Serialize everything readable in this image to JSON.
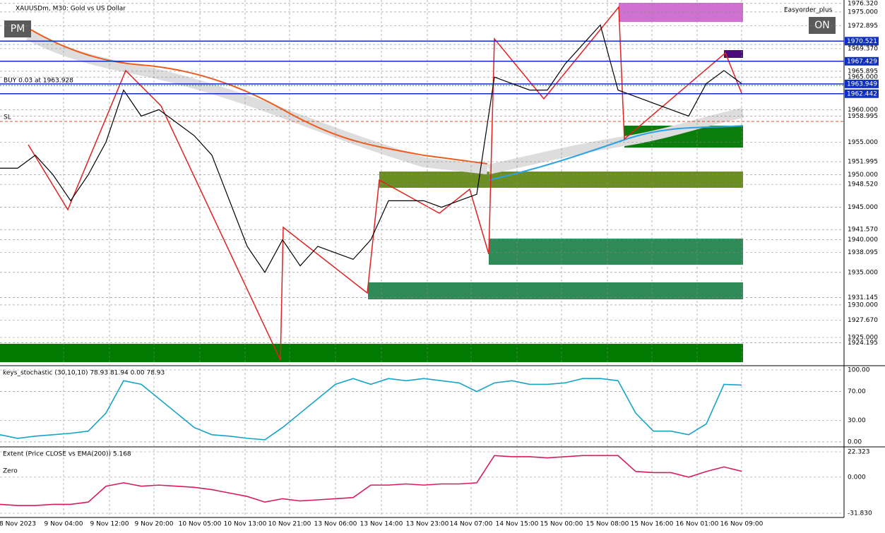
{
  "header": {
    "title": "XAUUSDm, M30:  Gold vs US Dollar",
    "left_button": "PM",
    "right_button": "ON",
    "expert": "Easyorder_plus",
    "order_label": "BUY 0.03 at 1963.928",
    "sl_label": "SL"
  },
  "time_axis": [
    "8 Nov 2023",
    "9 Nov 04:00",
    "9 Nov 12:00",
    "9 Nov 20:00",
    "10 Nov 05:00",
    "10 Nov 13:00",
    "10 Nov 21:00",
    "13 Nov 06:00",
    "13 Nov 14:00",
    "13 Nov 23:00",
    "14 Nov 07:00",
    "14 Nov 15:00",
    "15 Nov 00:00",
    "15 Nov 08:00",
    "15 Nov 16:00",
    "16 Nov 01:00",
    "16 Nov 09:00"
  ],
  "chart_data": [
    {
      "type": "line",
      "name": "price",
      "color": "#000000",
      "values": [
        1951,
        1951,
        1953,
        1950,
        1946,
        1950,
        1955,
        1963,
        1959,
        1960,
        1958,
        1956,
        1953,
        1946,
        1939,
        1935,
        1940,
        1936,
        1939,
        1938,
        1937,
        1940,
        1946,
        1946,
        1946,
        1945,
        1946,
        1947,
        1965,
        1964,
        1963,
        1963,
        1967,
        1970,
        1973,
        1963,
        1962,
        1961,
        1960,
        1959,
        1964,
        1966,
        1964
      ],
      "ylim": [
        1920.77,
        1976.84
      ],
      "yticks": [
        {
          "value": 1976.32,
          "label": "1976.320"
        },
        {
          "value": 1975,
          "label": "1975.000"
        },
        {
          "value": 1972.895,
          "label": "1972.895"
        },
        {
          "value": 1970,
          "label": "1970.000"
        },
        {
          "value": 1969.37,
          "label": "1969.370"
        },
        {
          "value": 1965.895,
          "label": "1965.895"
        },
        {
          "value": 1965,
          "label": "1965.000"
        },
        {
          "value": 1960,
          "label": "1960.000"
        },
        {
          "value": 1958.995,
          "label": "1958.995"
        },
        {
          "value": 1955,
          "label": "1955.000"
        },
        {
          "value": 1951.995,
          "label": "1951.995"
        },
        {
          "value": 1950,
          "label": "1950.000"
        },
        {
          "value": 1948.52,
          "label": "1948.520"
        },
        {
          "value": 1945,
          "label": "1945.000"
        },
        {
          "value": 1941.57,
          "label": "1941.570"
        },
        {
          "value": 1940,
          "label": "1940.000"
        },
        {
          "value": 1938.095,
          "label": "1938.095"
        },
        {
          "value": 1935,
          "label": "1935.000"
        },
        {
          "value": 1931.145,
          "label": "1931.145"
        },
        {
          "value": 1930,
          "label": "1930.000"
        },
        {
          "value": 1927.67,
          "label": "1927.670"
        },
        {
          "value": 1925,
          "label": "1925.000"
        },
        {
          "value": 1924.195,
          "label": "1924.195"
        }
      ],
      "levels": [
        {
          "value": 1970.521,
          "label": "1970.521"
        },
        {
          "value": 1967.429,
          "label": "1967.429"
        },
        {
          "value": 1963.949,
          "label": "1963.949"
        },
        {
          "value": 1962.442,
          "label": "1962.442"
        }
      ]
    },
    {
      "type": "line",
      "title": "keys_stochastic (30,10,10) 78.93 81.94 0.00 78.93",
      "color": "#17a2c8",
      "values": [
        10,
        5,
        8,
        10,
        12,
        15,
        40,
        85,
        80,
        60,
        40,
        20,
        10,
        8,
        5,
        3,
        20,
        40,
        60,
        80,
        88,
        80,
        88,
        85,
        88,
        85,
        82,
        70,
        82,
        85,
        80,
        80,
        82,
        88,
        88,
        85,
        40,
        15,
        15,
        10,
        25,
        80,
        78.93
      ],
      "ylim": [
        -5.9,
        104.9
      ],
      "yticks": [
        {
          "value": 100,
          "label": "100.00"
        },
        {
          "value": 70,
          "label": "70.00"
        },
        {
          "value": 30,
          "label": "30.00"
        },
        {
          "value": 0,
          "label": "0.00"
        }
      ]
    },
    {
      "type": "line",
      "title": "Extent (Price CLOSE vs EMA(200)) 5.168",
      "zero_label": "Zero",
      "color": "#d81b60",
      "values": [
        -24,
        -25,
        -25,
        -24,
        -24,
        -22,
        -8,
        -5,
        -8,
        -7,
        -8,
        -9,
        -11,
        -14,
        -17,
        -22,
        -19,
        -21,
        -20,
        -19,
        -18,
        -7,
        -7,
        -6,
        -7,
        -6,
        -6,
        -5,
        19,
        18,
        18,
        17,
        18,
        19,
        19,
        19,
        5,
        4,
        4,
        0,
        5,
        9,
        5.168
      ],
      "ylim": [
        -35.56,
        26.06
      ],
      "yticks": [
        {
          "value": 22.323,
          "label": "22.323"
        },
        {
          "value": 0,
          "label": "0.000"
        },
        {
          "value": -31.83,
          "label": "-31.830"
        }
      ]
    }
  ]
}
